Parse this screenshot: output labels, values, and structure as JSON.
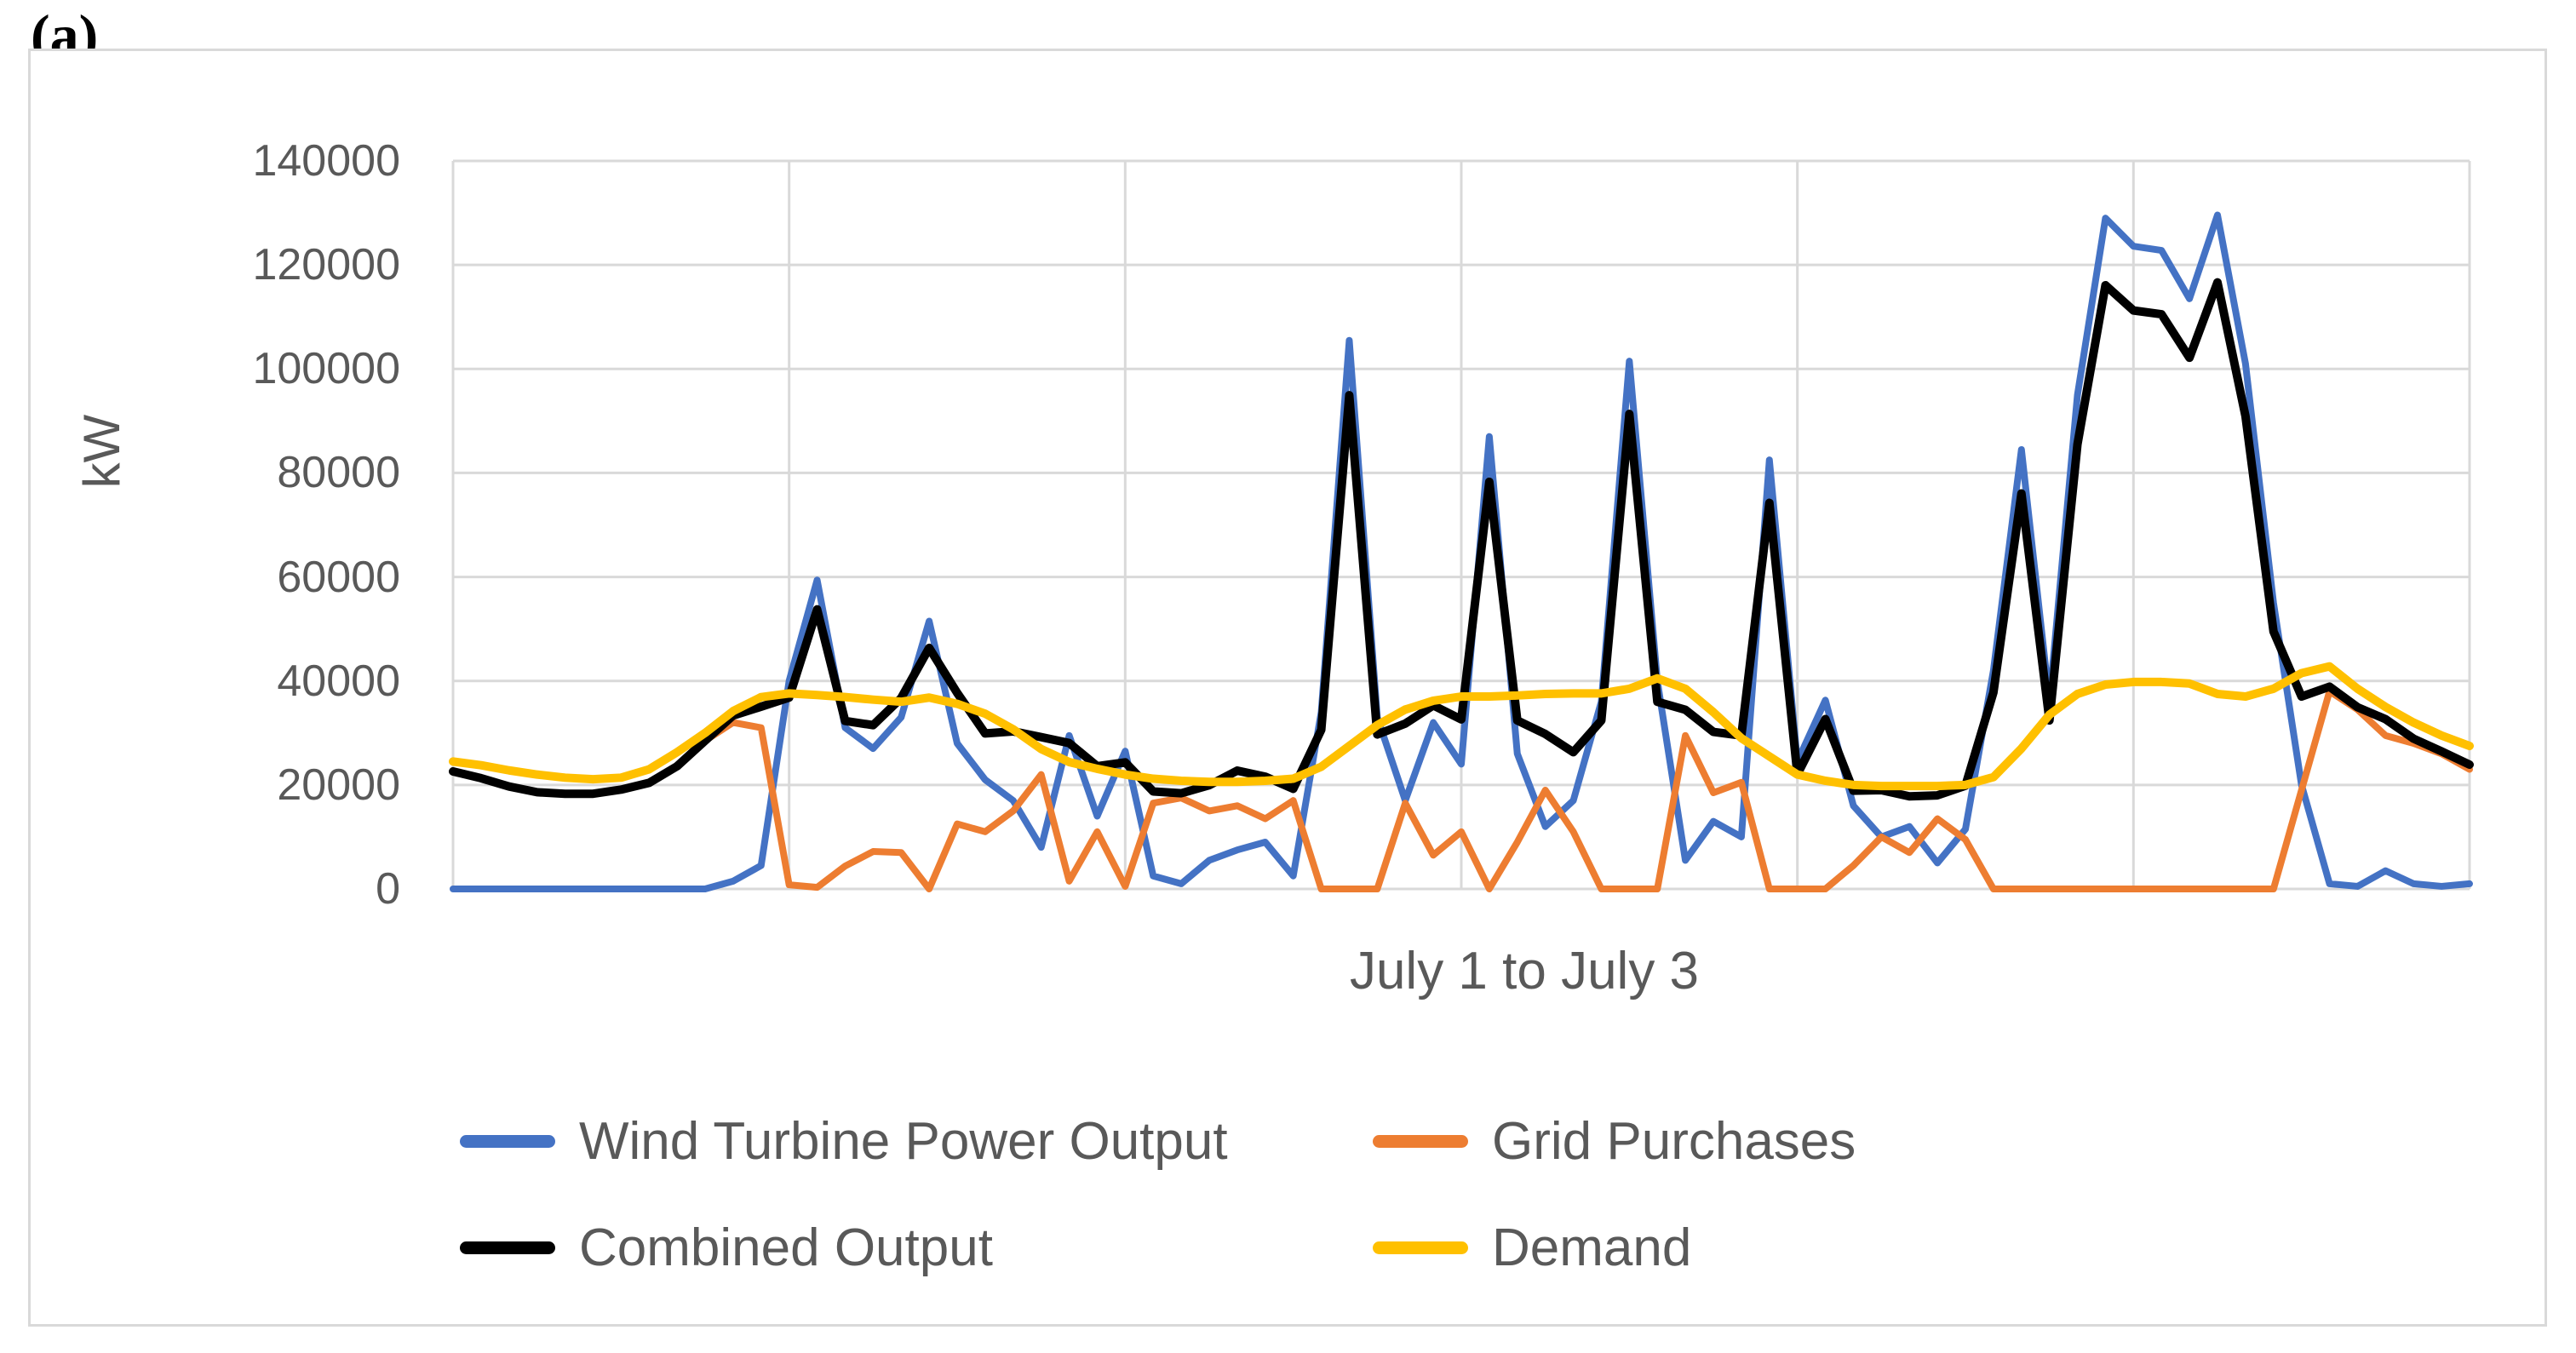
{
  "figure_label": "(a)",
  "y_axis": {
    "title": "kW",
    "ticks": [
      0,
      20000,
      40000,
      60000,
      80000,
      100000,
      120000,
      140000
    ],
    "max": 140000
  },
  "x_axis": {
    "title": "July 1 to July 3",
    "gridline_interval_hours": 12,
    "total_hours": 72
  },
  "colors": {
    "wind": "#4472c4",
    "grid": "#ed7d31",
    "combined": "#000000",
    "demand": "#ffc000",
    "gridline": "#d9d9d9",
    "axis_text": "#595959",
    "frame": "#d9d9d9"
  },
  "legend": {
    "items": [
      {
        "label": "Wind Turbine Power Output",
        "color": "#4472c4"
      },
      {
        "label": "Grid Purchases",
        "color": "#ed7d31"
      },
      {
        "label": "Combined Output",
        "color": "#000000"
      },
      {
        "label": "Demand",
        "color": "#ffc000"
      }
    ]
  },
  "chart_data": {
    "type": "line",
    "title": "",
    "xlabel": "July 1 to July 3",
    "ylabel": "kW",
    "ylim": [
      0,
      140000
    ],
    "x_hours": "hourly points, hour 0 of July 1 through hour 72 (end of July 3)",
    "grid": true,
    "legend_position": "bottom",
    "series": [
      {
        "name": "Wind Turbine Power Output",
        "color": "#4472c4",
        "width": 8,
        "values": [
          0,
          0,
          0,
          0,
          0,
          0,
          0,
          0,
          0,
          0,
          1500,
          4500,
          40000,
          59400,
          31000,
          27000,
          33000,
          51500,
          28000,
          21000,
          17000,
          8000,
          29500,
          14000,
          26500,
          2500,
          1000,
          5500,
          7500,
          9000,
          2500,
          34000,
          105500,
          33000,
          17000,
          32000,
          24000,
          87000,
          26000,
          12000,
          17000,
          36000,
          101500,
          40000,
          5500,
          13000,
          10000,
          82500,
          24500,
          36300,
          16000,
          10000,
          12000,
          5000,
          11500,
          42000,
          84500,
          36000,
          95000,
          129000,
          123600,
          122800,
          113500,
          129600,
          101000,
          55000,
          20000,
          1000,
          500,
          3500,
          1000,
          500,
          1000
        ]
      },
      {
        "name": "Grid Purchases",
        "color": "#ed7d31",
        "width": 8,
        "values": [
          22600,
          21300,
          19700,
          18600,
          18300,
          18300,
          19100,
          20400,
          23600,
          28500,
          32000,
          31000,
          800,
          300,
          4400,
          7200,
          7000,
          0,
          12500,
          11000,
          15000,
          22000,
          1500,
          11000,
          500,
          16500,
          17500,
          15000,
          16000,
          13500,
          17000,
          0,
          0,
          0,
          16500,
          6500,
          11000,
          0,
          9000,
          19000,
          11000,
          0,
          0,
          0,
          29500,
          18500,
          20500,
          0,
          0,
          0,
          4500,
          10000,
          7000,
          13500,
          9500,
          0,
          0,
          0,
          0,
          0,
          0,
          0,
          0,
          0,
          0,
          0,
          19000,
          38000,
          34500,
          29500,
          28000,
          26000,
          23000
        ]
      },
      {
        "name": "Combined Output",
        "color": "#000000",
        "width": 10,
        "values": [
          22600,
          21300,
          19700,
          18600,
          18300,
          18300,
          19100,
          20400,
          23600,
          28500,
          33350,
          35050,
          36800,
          53760,
          32300,
          31500,
          36700,
          46350,
          37700,
          29900,
          30300,
          29200,
          28050,
          23600,
          24350,
          18750,
          18400,
          19950,
          22750,
          21600,
          19250,
          30600,
          94950,
          29700,
          31800,
          35300,
          32600,
          78300,
          32400,
          29800,
          26300,
          32400,
          91350,
          36000,
          34450,
          30200,
          29500,
          74250,
          22050,
          32670,
          18900,
          19000,
          17800,
          18000,
          19850,
          37800,
          76050,
          32400,
          85500,
          116100,
          111240,
          110520,
          102150,
          116640,
          90900,
          49500,
          37000,
          38900,
          34950,
          32650,
          28900,
          26450,
          23900
        ]
      },
      {
        "name": "Demand",
        "color": "#ffc000",
        "width": 10,
        "values": [
          24500,
          23800,
          22800,
          22000,
          21400,
          21100,
          21400,
          23000,
          26300,
          30000,
          34200,
          36900,
          37600,
          37300,
          36900,
          36400,
          36000,
          36800,
          35600,
          33700,
          30700,
          26900,
          24400,
          23100,
          22000,
          21200,
          20800,
          20600,
          20600,
          20800,
          21200,
          23500,
          27500,
          31500,
          34500,
          36200,
          37000,
          37000,
          37200,
          37500,
          37600,
          37600,
          38500,
          40500,
          38500,
          34000,
          29000,
          25500,
          22000,
          20800,
          20000,
          19800,
          19800,
          19800,
          20000,
          21500,
          27000,
          33500,
          37500,
          39300,
          39800,
          39800,
          39500,
          37500,
          37000,
          38500,
          41500,
          42800,
          38500,
          35000,
          32000,
          29500,
          27500
        ]
      }
    ]
  }
}
